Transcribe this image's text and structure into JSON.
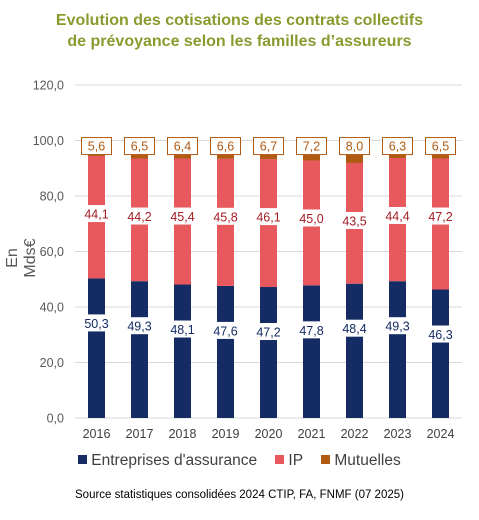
{
  "title_line1": "Evolution des cotisations des contrats collectifs",
  "title_line2": "de prévoyance selon les  familles d’assureurs",
  "source": "Source statistiques consolidées 2024 CTIP, FA, FNMF (07 2025)",
  "colors": {
    "entreprises": "#142c63",
    "ip": "#e8595e",
    "mutuelles": "#b05a12",
    "ip_label": "#a51d24",
    "mutuelles_label": "#b05a12",
    "title": "#8a9a2f"
  },
  "chart_data": {
    "type": "bar",
    "stacked": true,
    "categories": [
      "2016",
      "2017",
      "2018",
      "2019",
      "2020",
      "2021",
      "2022",
      "2023",
      "2024"
    ],
    "series": [
      {
        "name": "Entreprises d'assurance",
        "values": [
          50.3,
          49.3,
          48.1,
          47.6,
          47.2,
          47.8,
          48.4,
          49.3,
          46.3
        ]
      },
      {
        "name": "IP",
        "values": [
          44.1,
          44.2,
          45.4,
          45.8,
          46.1,
          45.0,
          43.5,
          44.4,
          47.2
        ]
      },
      {
        "name": "Mutuelles",
        "values": [
          5.6,
          6.5,
          6.4,
          6.6,
          6.7,
          7.2,
          8.0,
          6.3,
          6.5
        ]
      }
    ],
    "title": "Evolution des cotisations des contrats collectifs de prévoyance selon les  familles d’assureurs",
    "xlabel": "",
    "ylabel": "En Mds€",
    "ylim": [
      0,
      120
    ],
    "yticks": [
      0,
      20,
      40,
      60,
      80,
      100,
      120
    ],
    "ytick_labels": [
      "0,0",
      "20,0",
      "40,0",
      "60,0",
      "80,0",
      "100,0",
      "120,0"
    ],
    "labels": {
      "Entreprises d'assurance": [
        "50,3",
        "49,3",
        "48,1",
        "47,6",
        "47,2",
        "47,8",
        "48,4",
        "49,3",
        "46,3"
      ],
      "IP": [
        "44,1",
        "44,2",
        "45,4",
        "45,8",
        "46,1",
        "45,0",
        "43,5",
        "44,4",
        "47,2"
      ],
      "Mutuelles": [
        "5,6",
        "6,5",
        "6,4",
        "6,6",
        "6,7",
        "7,2",
        "8,0",
        "6,3",
        "6,5"
      ]
    },
    "grid": true,
    "legend_position": "bottom"
  }
}
